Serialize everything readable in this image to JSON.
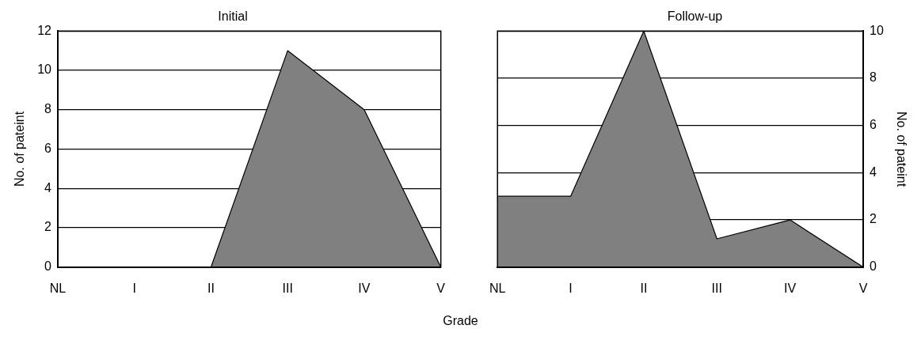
{
  "chart_data": [
    {
      "type": "area",
      "title": "Initial",
      "xlabel": "Grade",
      "ylabel": "No. of pateint",
      "categories": [
        "NL",
        "I",
        "II",
        "III",
        "IV",
        "V"
      ],
      "ylim": [
        0,
        12
      ],
      "yticks": [
        0,
        2,
        4,
        6,
        8,
        10,
        12
      ],
      "grid": "y",
      "series": [
        {
          "color": "#808080",
          "values": [
            0,
            0,
            0,
            11,
            8,
            0
          ]
        }
      ]
    },
    {
      "type": "area",
      "title": "Follow-up",
      "y2label": "No. of pateint",
      "categories": [
        "NL",
        "I",
        "II",
        "III",
        "IV",
        "V"
      ],
      "y2lim": [
        0,
        10
      ],
      "y2ticks": [
        0,
        2,
        4,
        6,
        8,
        10
      ],
      "grid": "y",
      "series": [
        {
          "color": "#808080",
          "axis": "y2",
          "values": [
            3,
            3,
            10,
            1.2,
            2,
            0
          ]
        }
      ]
    }
  ]
}
